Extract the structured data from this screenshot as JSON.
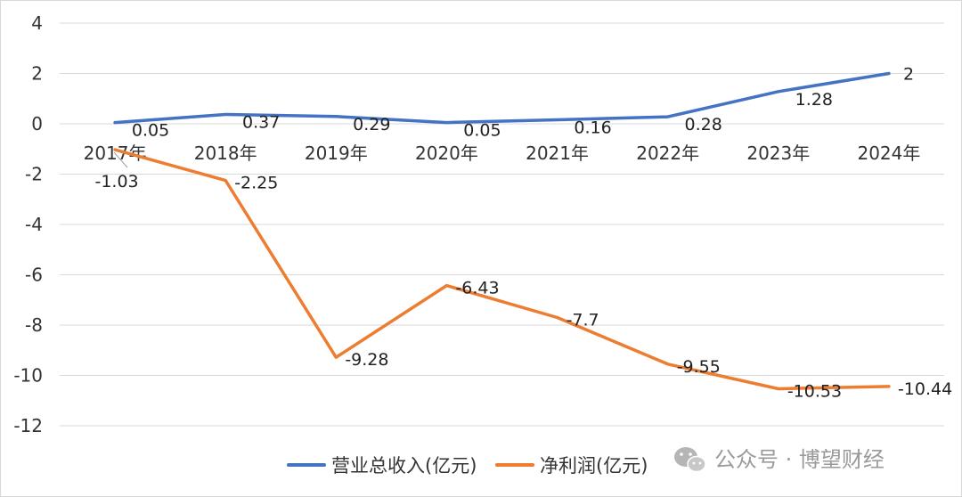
{
  "chart_data": {
    "type": "line",
    "categories": [
      "2017年",
      "2018年",
      "2019年",
      "2020年",
      "2021年",
      "2022年",
      "2023年",
      "2024年"
    ],
    "series": [
      {
        "name": "营业总收入(亿元)",
        "color": "#4472C4",
        "values": [
          0.05,
          0.37,
          0.29,
          0.05,
          0.16,
          0.28,
          1.28,
          2
        ],
        "labels": [
          "0.05",
          "0.37",
          "0.29",
          "0.05",
          "0.16",
          "0.28",
          "1.28",
          "2"
        ]
      },
      {
        "name": "净利润(亿元)",
        "color": "#ED7D31",
        "values": [
          -1.03,
          -2.25,
          -9.28,
          -6.43,
          -7.7,
          -9.55,
          -10.53,
          -10.44
        ],
        "labels": [
          "-1.03",
          "-2.25",
          "-9.28",
          "-6.43",
          "-7.7",
          "-9.55",
          "-10.53",
          "-10.44"
        ]
      }
    ],
    "yticks": [
      "4",
      "2",
      "0",
      "-2",
      "-4",
      "-6",
      "-8",
      "-10",
      "-12"
    ],
    "ylim": [
      -12,
      4
    ],
    "grid": true,
    "legend_position": "bottom"
  },
  "watermark": {
    "text": "公众号 · 博望财经",
    "icon": "wechat-icon"
  }
}
